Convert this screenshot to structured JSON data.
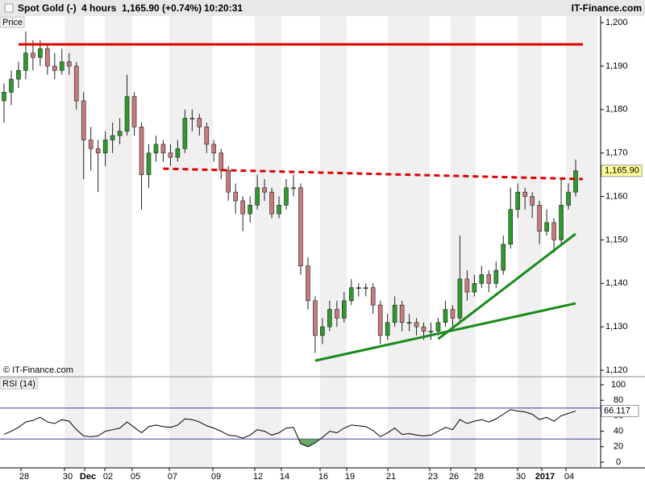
{
  "header": {
    "title": "Spot Gold (-)",
    "interval": "4 hours",
    "quote": "1,165.90 (+0.74%)",
    "time": "10:20:31",
    "brand": "IT-Finance.com"
  },
  "chart_data": [
    {
      "type": "candlestick",
      "label": "Price",
      "credit": "© IT-Finance.com",
      "up_color": "#2e9a2e",
      "down_color": "#c97a7a",
      "ylim": [
        1118.7,
        1201.5
      ],
      "yticks": [
        {
          "value": 1120,
          "label": "1,120"
        },
        {
          "value": 1130,
          "label": "1,130"
        },
        {
          "value": 1140,
          "label": "1,140"
        },
        {
          "value": 1150,
          "label": "1,150"
        },
        {
          "value": 1160,
          "label": "1,160"
        },
        {
          "value": 1170,
          "label": "1,170"
        },
        {
          "value": 1180,
          "label": "1,180"
        },
        {
          "value": 1190,
          "label": "1,190"
        },
        {
          "value": 1200,
          "label": "1,200"
        }
      ],
      "xtick_labels": [
        "28",
        "30",
        "Dec",
        "02",
        "05",
        "07",
        "09",
        "12",
        "14",
        "16",
        "19",
        "21",
        "23",
        "26",
        "28",
        "30",
        "2017",
        "04"
      ],
      "last": {
        "value": 1165.9,
        "label": "1,165.90"
      },
      "candles": [
        [
          1182,
          1186,
          1177,
          1184
        ],
        [
          1184,
          1189,
          1181,
          1187
        ],
        [
          1187,
          1191,
          1185,
          1189
        ],
        [
          1189,
          1198,
          1187,
          1193
        ],
        [
          1193,
          1196,
          1189,
          1192
        ],
        [
          1192,
          1196,
          1190,
          1194
        ],
        [
          1194,
          1195,
          1188,
          1190
        ],
        [
          1190,
          1193,
          1187,
          1189
        ],
        [
          1189,
          1194,
          1188,
          1191
        ],
        [
          1191,
          1193,
          1188,
          1190
        ],
        [
          1190,
          1191,
          1180,
          1182
        ],
        [
          1182,
          1184,
          1164,
          1173
        ],
        [
          1173,
          1176,
          1166,
          1171
        ],
        [
          1171,
          1173,
          1161,
          1170
        ],
        [
          1170,
          1175,
          1167,
          1173
        ],
        [
          1173,
          1177,
          1170,
          1174
        ],
        [
          1174,
          1178,
          1172,
          1175
        ],
        [
          1175,
          1188,
          1174,
          1183
        ],
        [
          1183,
          1184,
          1174,
          1176
        ],
        [
          1176,
          1177,
          1157,
          1165
        ],
        [
          1165,
          1172,
          1162,
          1170
        ],
        [
          1170,
          1174,
          1168,
          1172
        ],
        [
          1172,
          1173,
          1168,
          1170
        ],
        [
          1170,
          1172,
          1167,
          1169
        ],
        [
          1169,
          1173,
          1168,
          1171
        ],
        [
          1171,
          1180,
          1170,
          1178
        ],
        [
          1178,
          1180,
          1175,
          1178
        ],
        [
          1178,
          1179,
          1174,
          1176
        ],
        [
          1176,
          1177,
          1170,
          1172
        ],
        [
          1172,
          1173,
          1168,
          1170
        ],
        [
          1170,
          1171,
          1164,
          1166
        ],
        [
          1166,
          1167,
          1159,
          1161
        ],
        [
          1161,
          1163,
          1156,
          1159
        ],
        [
          1159,
          1160,
          1152,
          1156
        ],
        [
          1156,
          1160,
          1154,
          1158
        ],
        [
          1158,
          1165,
          1157,
          1162
        ],
        [
          1162,
          1164,
          1159,
          1161
        ],
        [
          1161,
          1162,
          1155,
          1156
        ],
        [
          1156,
          1160,
          1155,
          1158
        ],
        [
          1158,
          1164,
          1157,
          1162
        ],
        [
          1162,
          1165,
          1160,
          1162
        ],
        [
          1162,
          1163,
          1142,
          1144
        ],
        [
          1144,
          1146,
          1134,
          1136
        ],
        [
          1136,
          1137,
          1124,
          1128
        ],
        [
          1128,
          1132,
          1126,
          1130
        ],
        [
          1130,
          1136,
          1129,
          1134
        ],
        [
          1134,
          1136,
          1130,
          1132
        ],
        [
          1132,
          1138,
          1131,
          1136
        ],
        [
          1136,
          1141,
          1135,
          1139
        ],
        [
          1139,
          1140,
          1137,
          1139
        ],
        [
          1139,
          1140,
          1137,
          1139
        ],
        [
          1139,
          1140,
          1133,
          1135
        ],
        [
          1135,
          1136,
          1126,
          1128
        ],
        [
          1128,
          1133,
          1127,
          1131
        ],
        [
          1131,
          1137,
          1130,
          1135
        ],
        [
          1135,
          1136,
          1129,
          1131
        ],
        [
          1131,
          1133,
          1129,
          1131
        ],
        [
          1131,
          1132,
          1128,
          1130
        ],
        [
          1130,
          1131,
          1127,
          1129
        ],
        [
          1129,
          1131,
          1127,
          1129
        ],
        [
          1129,
          1132,
          1128,
          1131
        ],
        [
          1131,
          1136,
          1130,
          1134
        ],
        [
          1134,
          1135,
          1130,
          1132
        ],
        [
          1132,
          1151,
          1131,
          1141
        ],
        [
          1141,
          1143,
          1136,
          1138
        ],
        [
          1138,
          1142,
          1137,
          1140
        ],
        [
          1140,
          1144,
          1139,
          1142
        ],
        [
          1142,
          1143,
          1138,
          1140
        ],
        [
          1140,
          1145,
          1139,
          1143
        ],
        [
          1143,
          1151,
          1142,
          1149
        ],
        [
          1149,
          1162,
          1148,
          1157
        ],
        [
          1157,
          1163,
          1155,
          1161
        ],
        [
          1161,
          1162,
          1157,
          1160
        ],
        [
          1160,
          1161,
          1155,
          1158
        ],
        [
          1158,
          1159,
          1149,
          1152
        ],
        [
          1152,
          1157,
          1151,
          1154
        ],
        [
          1154,
          1155,
          1147,
          1150
        ],
        [
          1150,
          1164,
          1149,
          1158
        ],
        [
          1158,
          1163,
          1157,
          1161
        ],
        [
          1161,
          1168.5,
          1160,
          1165.9
        ]
      ],
      "lines": [
        {
          "color": "#e00000",
          "style": "solid",
          "x": [
            2,
            80
          ],
          "y": [
            1195,
            1195
          ]
        },
        {
          "color": "#e00000",
          "style": "dashed",
          "x": [
            22,
            80
          ],
          "y": [
            1166.4,
            1164
          ]
        },
        {
          "color": "#1a8a1a",
          "style": "solid",
          "x": [
            43,
            79
          ],
          "y": [
            1122.2,
            1135.4
          ]
        },
        {
          "color": "#1a8a1a",
          "style": "solid",
          "x": [
            60,
            79
          ],
          "y": [
            1127.2,
            1151.4
          ]
        }
      ]
    },
    {
      "type": "line",
      "label": "RSI (14)",
      "color": "#000000",
      "level_color": "#3a3aa0",
      "oversold_color": "#6aa86a",
      "ylim": [
        -7.3,
        109.4
      ],
      "yticks": [
        0,
        20,
        40,
        60,
        80,
        100
      ],
      "levels": [
        30,
        70
      ],
      "values": [
        36,
        40,
        45,
        52,
        54,
        58,
        52,
        50,
        55,
        53,
        42,
        34,
        33,
        34,
        40,
        42,
        44,
        52,
        45,
        38,
        46,
        48,
        46,
        45,
        48,
        56,
        55,
        52,
        47,
        44,
        40,
        35,
        34,
        31,
        35,
        42,
        40,
        35,
        38,
        44,
        45,
        24,
        20,
        25,
        32,
        40,
        38,
        44,
        48,
        47,
        46,
        41,
        33,
        38,
        44,
        36,
        37,
        35,
        34,
        35,
        40,
        45,
        42,
        55,
        50,
        53,
        55,
        52,
        56,
        62,
        68,
        66,
        65,
        62,
        55,
        58,
        53,
        60,
        63,
        66.117
      ]
    }
  ]
}
